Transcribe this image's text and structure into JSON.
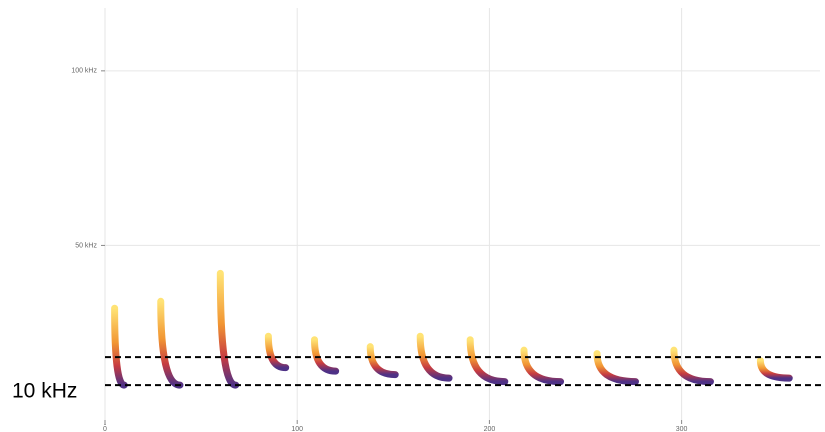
{
  "chart_data": {
    "type": "spectrogram",
    "xlim": [
      0,
      372
    ],
    "xticks": [
      0,
      100,
      200,
      300
    ],
    "ylim": [
      0,
      118
    ],
    "yticks": [
      {
        "value": 50,
        "label": "50 kHz"
      },
      {
        "value": 100,
        "label": "100 kHz"
      }
    ],
    "grid": true,
    "calls": [
      {
        "t": [
          5,
          10
        ],
        "f": [
          32,
          10
        ]
      },
      {
        "t": [
          29,
          39
        ],
        "f": [
          34,
          10
        ]
      },
      {
        "t": [
          60,
          68
        ],
        "f": [
          42,
          10
        ]
      },
      {
        "t": [
          85,
          94
        ],
        "f": [
          24,
          15
        ]
      },
      {
        "t": [
          109,
          120
        ],
        "f": [
          23,
          14
        ]
      },
      {
        "t": [
          138,
          151
        ],
        "f": [
          21,
          13
        ]
      },
      {
        "t": [
          164,
          179
        ],
        "f": [
          24,
          12
        ]
      },
      {
        "t": [
          190,
          208
        ],
        "f": [
          23,
          11
        ]
      },
      {
        "t": [
          218,
          237
        ],
        "f": [
          20,
          11
        ]
      },
      {
        "t": [
          256,
          276
        ],
        "f": [
          19,
          11
        ]
      },
      {
        "t": [
          296,
          315
        ],
        "f": [
          20,
          11
        ]
      },
      {
        "t": [
          341,
          356
        ],
        "f": [
          17,
          12
        ]
      }
    ],
    "reference_lines": [
      10,
      18
    ],
    "annotation": "10 kHz"
  }
}
